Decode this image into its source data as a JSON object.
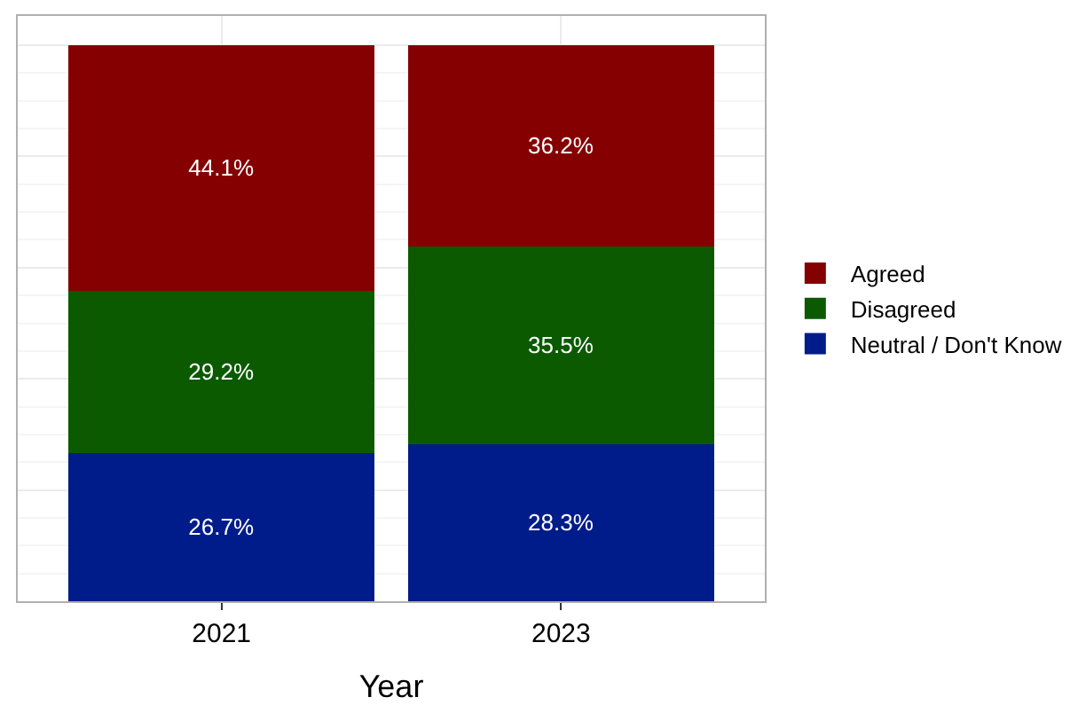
{
  "chart_data": {
    "type": "bar",
    "stacked": true,
    "categories": [
      "2021",
      "2023"
    ],
    "xlabel": "Year",
    "series": [
      {
        "name": "Neutral / Don't Know",
        "color": "#001c8a",
        "values": [
          26.7,
          28.3
        ],
        "value_labels": [
          "26.7%",
          "28.3%"
        ]
      },
      {
        "name": "Disagreed",
        "color": "#0b5a00",
        "values": [
          29.2,
          35.5
        ],
        "value_labels": [
          "29.2%",
          "35.5%"
        ]
      },
      {
        "name": "Agreed",
        "color": "#850000",
        "values": [
          44.1,
          36.2
        ],
        "value_labels": [
          "44.1%",
          "36.2%"
        ]
      }
    ],
    "grid": true,
    "legend": "right",
    "tick_labels": "x"
  }
}
